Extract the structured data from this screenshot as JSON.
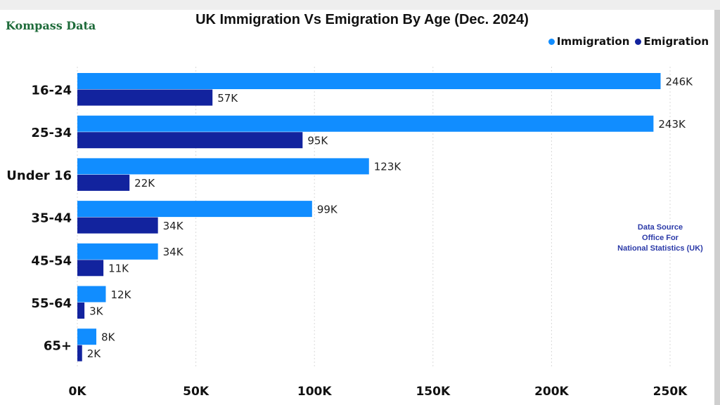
{
  "brand": "Kompass Data",
  "source_note": [
    "Data Source",
    "Office For",
    "National Statistics (UK)"
  ],
  "colors": {
    "immigration": "#118dff",
    "emigration": "#12239e",
    "brand": "#1e6b3a",
    "source": "#2b3aa8"
  },
  "chart_data": {
    "type": "bar",
    "orientation": "horizontal",
    "title": "UK Immigration Vs Emigration By Age (Dec. 2024)",
    "xlabel": "",
    "ylabel": "",
    "categories": [
      "16-24",
      "25-34",
      "Under 16",
      "35-44",
      "45-54",
      "55-64",
      "65+"
    ],
    "series": [
      {
        "name": "Immigration",
        "values": [
          246,
          243,
          123,
          99,
          34,
          12,
          8
        ],
        "labels": [
          "246K",
          "243K",
          "123K",
          "99K",
          "34K",
          "12K",
          "8K"
        ]
      },
      {
        "name": "Emigration",
        "values": [
          57,
          95,
          22,
          34,
          11,
          3,
          2
        ],
        "labels": [
          "57K",
          "95K",
          "22K",
          "34K",
          "11K",
          "3K",
          "2K"
        ]
      }
    ],
    "units": "thousands",
    "xlim": [
      0,
      250
    ],
    "xticks": [
      0,
      50,
      100,
      150,
      200,
      250
    ],
    "xtick_labels": [
      "0K",
      "50K",
      "100K",
      "150K",
      "200K",
      "250K"
    ],
    "grid": true,
    "legend": "top-right"
  }
}
